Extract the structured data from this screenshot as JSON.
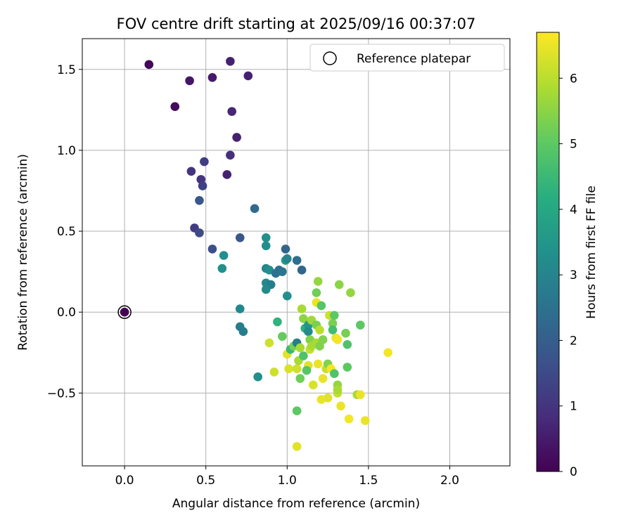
{
  "chart_data": {
    "type": "scatter",
    "title": "FOV centre drift starting at 2025/09/16 00:37:07",
    "xlabel": "Angular distance from reference (arcmin)",
    "ylabel": "Rotation from reference (arcmin)",
    "xlim": [
      -0.26,
      2.37
    ],
    "ylim": [
      -0.95,
      1.69
    ],
    "xticks": [
      0.0,
      0.5,
      1.0,
      1.5,
      2.0
    ],
    "xtick_labels": [
      "0.0",
      "0.5",
      "1.0",
      "1.5",
      "2.0"
    ],
    "yticks": [
      -0.5,
      0.0,
      0.5,
      1.0,
      1.5
    ],
    "ytick_labels": [
      "−0.5",
      "0.0",
      "0.5",
      "1.0",
      "1.5"
    ],
    "grid": true,
    "legend": {
      "placement": "top-right",
      "entries": [
        {
          "label": "Reference platepar",
          "marker": "open-circle"
        }
      ]
    },
    "reference_point": {
      "x": 0.0,
      "y": 0.0,
      "hours": 0.0
    },
    "colorbar": {
      "label": "Hours from first FF file",
      "colormap": "viridis",
      "range": [
        0,
        6.7
      ],
      "ticks": [
        0,
        1,
        2,
        3,
        4,
        5,
        6
      ],
      "tick_labels": [
        "0",
        "1",
        "2",
        "3",
        "4",
        "5",
        "6"
      ]
    },
    "points": [
      {
        "x": 0.15,
        "y": 1.53,
        "h": 0.1
      },
      {
        "x": 0.31,
        "y": 1.27,
        "h": 0.2
      },
      {
        "x": 0.4,
        "y": 1.43,
        "h": 0.4
      },
      {
        "x": 0.54,
        "y": 1.45,
        "h": 0.5
      },
      {
        "x": 0.65,
        "y": 1.55,
        "h": 0.6
      },
      {
        "x": 0.76,
        "y": 1.46,
        "h": 0.6
      },
      {
        "x": 0.66,
        "y": 1.24,
        "h": 0.7
      },
      {
        "x": 0.69,
        "y": 1.08,
        "h": 0.6
      },
      {
        "x": 0.65,
        "y": 0.97,
        "h": 0.9
      },
      {
        "x": 0.49,
        "y": 0.93,
        "h": 1.2
      },
      {
        "x": 0.41,
        "y": 0.87,
        "h": 1.0
      },
      {
        "x": 0.47,
        "y": 0.82,
        "h": 1.0
      },
      {
        "x": 0.48,
        "y": 0.78,
        "h": 1.3
      },
      {
        "x": 0.63,
        "y": 0.85,
        "h": 0.6
      },
      {
        "x": 0.46,
        "y": 0.69,
        "h": 1.8
      },
      {
        "x": 0.43,
        "y": 0.52,
        "h": 1.2
      },
      {
        "x": 0.46,
        "y": 0.49,
        "h": 1.5
      },
      {
        "x": 0.54,
        "y": 0.39,
        "h": 1.6
      },
      {
        "x": 0.71,
        "y": 0.46,
        "h": 1.8
      },
      {
        "x": 0.8,
        "y": 0.64,
        "h": 2.3
      },
      {
        "x": 0.61,
        "y": 0.35,
        "h": 3.3
      },
      {
        "x": 0.6,
        "y": 0.27,
        "h": 3.3
      },
      {
        "x": 0.71,
        "y": 0.02,
        "h": 3.1
      },
      {
        "x": 0.71,
        "y": -0.09,
        "h": 2.8
      },
      {
        "x": 0.73,
        "y": -0.12,
        "h": 2.8
      },
      {
        "x": 0.82,
        "y": -0.4,
        "h": 3.3
      },
      {
        "x": 0.87,
        "y": 0.46,
        "h": 3.3
      },
      {
        "x": 0.87,
        "y": 0.41,
        "h": 3.3
      },
      {
        "x": 0.87,
        "y": 0.27,
        "h": 3.0
      },
      {
        "x": 0.89,
        "y": 0.26,
        "h": 3.3
      },
      {
        "x": 0.87,
        "y": 0.18,
        "h": 3.1
      },
      {
        "x": 0.9,
        "y": 0.17,
        "h": 2.8
      },
      {
        "x": 0.87,
        "y": 0.14,
        "h": 3.2
      },
      {
        "x": 0.93,
        "y": 0.24,
        "h": 2.5
      },
      {
        "x": 0.95,
        "y": 0.26,
        "h": 2.4
      },
      {
        "x": 0.97,
        "y": 0.25,
        "h": 2.6
      },
      {
        "x": 0.99,
        "y": 0.32,
        "h": 3.6
      },
      {
        "x": 0.99,
        "y": 0.39,
        "h": 2.2
      },
      {
        "x": 1.0,
        "y": 0.33,
        "h": 3.0
      },
      {
        "x": 1.06,
        "y": 0.32,
        "h": 2.4
      },
      {
        "x": 1.09,
        "y": 0.26,
        "h": 2.2
      },
      {
        "x": 1.0,
        "y": 0.1,
        "h": 3.3
      },
      {
        "x": 0.94,
        "y": -0.06,
        "h": 4.3
      },
      {
        "x": 0.97,
        "y": -0.15,
        "h": 5.1
      },
      {
        "x": 0.89,
        "y": -0.19,
        "h": 6.2
      },
      {
        "x": 0.92,
        "y": -0.37,
        "h": 6.2
      },
      {
        "x": 1.0,
        "y": -0.26,
        "h": 6.4
      },
      {
        "x": 1.02,
        "y": -0.23,
        "h": 4.5
      },
      {
        "x": 1.04,
        "y": -0.21,
        "h": 5.3
      },
      {
        "x": 1.06,
        "y": -0.19,
        "h": 2.8
      },
      {
        "x": 1.01,
        "y": -0.35,
        "h": 6.3
      },
      {
        "x": 1.06,
        "y": -0.35,
        "h": 6.2
      },
      {
        "x": 1.07,
        "y": -0.3,
        "h": 5.8
      },
      {
        "x": 1.08,
        "y": -0.22,
        "h": 5.8
      },
      {
        "x": 1.1,
        "y": -0.27,
        "h": 4.8
      },
      {
        "x": 1.08,
        "y": -0.41,
        "h": 5.2
      },
      {
        "x": 1.06,
        "y": -0.61,
        "h": 5.0
      },
      {
        "x": 1.06,
        "y": -0.83,
        "h": 6.4
      },
      {
        "x": 1.09,
        "y": 0.02,
        "h": 5.8
      },
      {
        "x": 1.1,
        "y": -0.04,
        "h": 5.5
      },
      {
        "x": 1.11,
        "y": -0.1,
        "h": 4.2
      },
      {
        "x": 1.13,
        "y": -0.08,
        "h": 3.5
      },
      {
        "x": 1.13,
        "y": -0.12,
        "h": 3.2
      },
      {
        "x": 1.13,
        "y": -0.33,
        "h": 6.4
      },
      {
        "x": 1.14,
        "y": -0.23,
        "h": 6.1
      },
      {
        "x": 1.14,
        "y": -0.17,
        "h": 5.4
      },
      {
        "x": 1.15,
        "y": -0.21,
        "h": 5.8
      },
      {
        "x": 1.15,
        "y": -0.05,
        "h": 5.7
      },
      {
        "x": 1.12,
        "y": -0.36,
        "h": 4.9
      },
      {
        "x": 1.16,
        "y": -0.45,
        "h": 6.3
      },
      {
        "x": 1.18,
        "y": -0.19,
        "h": 5.8
      },
      {
        "x": 1.18,
        "y": -0.08,
        "h": 5.3
      },
      {
        "x": 1.18,
        "y": 0.06,
        "h": 6.5
      },
      {
        "x": 1.18,
        "y": 0.12,
        "h": 5.2
      },
      {
        "x": 1.19,
        "y": 0.19,
        "h": 5.6
      },
      {
        "x": 1.19,
        "y": -0.32,
        "h": 6.5
      },
      {
        "x": 1.2,
        "y": -0.11,
        "h": 6.0
      },
      {
        "x": 1.2,
        "y": -0.21,
        "h": 5.4
      },
      {
        "x": 1.21,
        "y": -0.54,
        "h": 6.5
      },
      {
        "x": 1.21,
        "y": 0.04,
        "h": 4.9
      },
      {
        "x": 1.22,
        "y": -0.17,
        "h": 5.4
      },
      {
        "x": 1.22,
        "y": -0.41,
        "h": 6.5
      },
      {
        "x": 1.24,
        "y": -0.35,
        "h": 6.1
      },
      {
        "x": 1.25,
        "y": -0.53,
        "h": 6.4
      },
      {
        "x": 1.25,
        "y": -0.32,
        "h": 5.4
      },
      {
        "x": 1.26,
        "y": -0.02,
        "h": 6.2
      },
      {
        "x": 1.27,
        "y": -0.35,
        "h": 6.6
      },
      {
        "x": 1.28,
        "y": -0.07,
        "h": 5.3
      },
      {
        "x": 1.28,
        "y": -0.11,
        "h": 4.6
      },
      {
        "x": 1.29,
        "y": -0.38,
        "h": 4.8
      },
      {
        "x": 1.29,
        "y": -0.02,
        "h": 5.0
      },
      {
        "x": 1.3,
        "y": -0.16,
        "h": 6.5
      },
      {
        "x": 1.31,
        "y": -0.17,
        "h": 6.6
      },
      {
        "x": 1.31,
        "y": -0.45,
        "h": 5.6
      },
      {
        "x": 1.31,
        "y": -0.5,
        "h": 6.1
      },
      {
        "x": 1.31,
        "y": -0.48,
        "h": 5.8
      },
      {
        "x": 1.32,
        "y": 0.17,
        "h": 5.5
      },
      {
        "x": 1.33,
        "y": -0.58,
        "h": 6.5
      },
      {
        "x": 1.36,
        "y": -0.13,
        "h": 5.3
      },
      {
        "x": 1.37,
        "y": -0.2,
        "h": 4.8
      },
      {
        "x": 1.37,
        "y": -0.34,
        "h": 5.0
      },
      {
        "x": 1.38,
        "y": -0.66,
        "h": 6.6
      },
      {
        "x": 1.39,
        "y": 0.12,
        "h": 5.6
      },
      {
        "x": 1.43,
        "y": -0.51,
        "h": 5.8
      },
      {
        "x": 1.45,
        "y": -0.51,
        "h": 6.5
      },
      {
        "x": 1.45,
        "y": -0.08,
        "h": 5.0
      },
      {
        "x": 1.48,
        "y": -0.67,
        "h": 6.5
      },
      {
        "x": 1.62,
        "y": -0.25,
        "h": 6.6
      }
    ]
  }
}
